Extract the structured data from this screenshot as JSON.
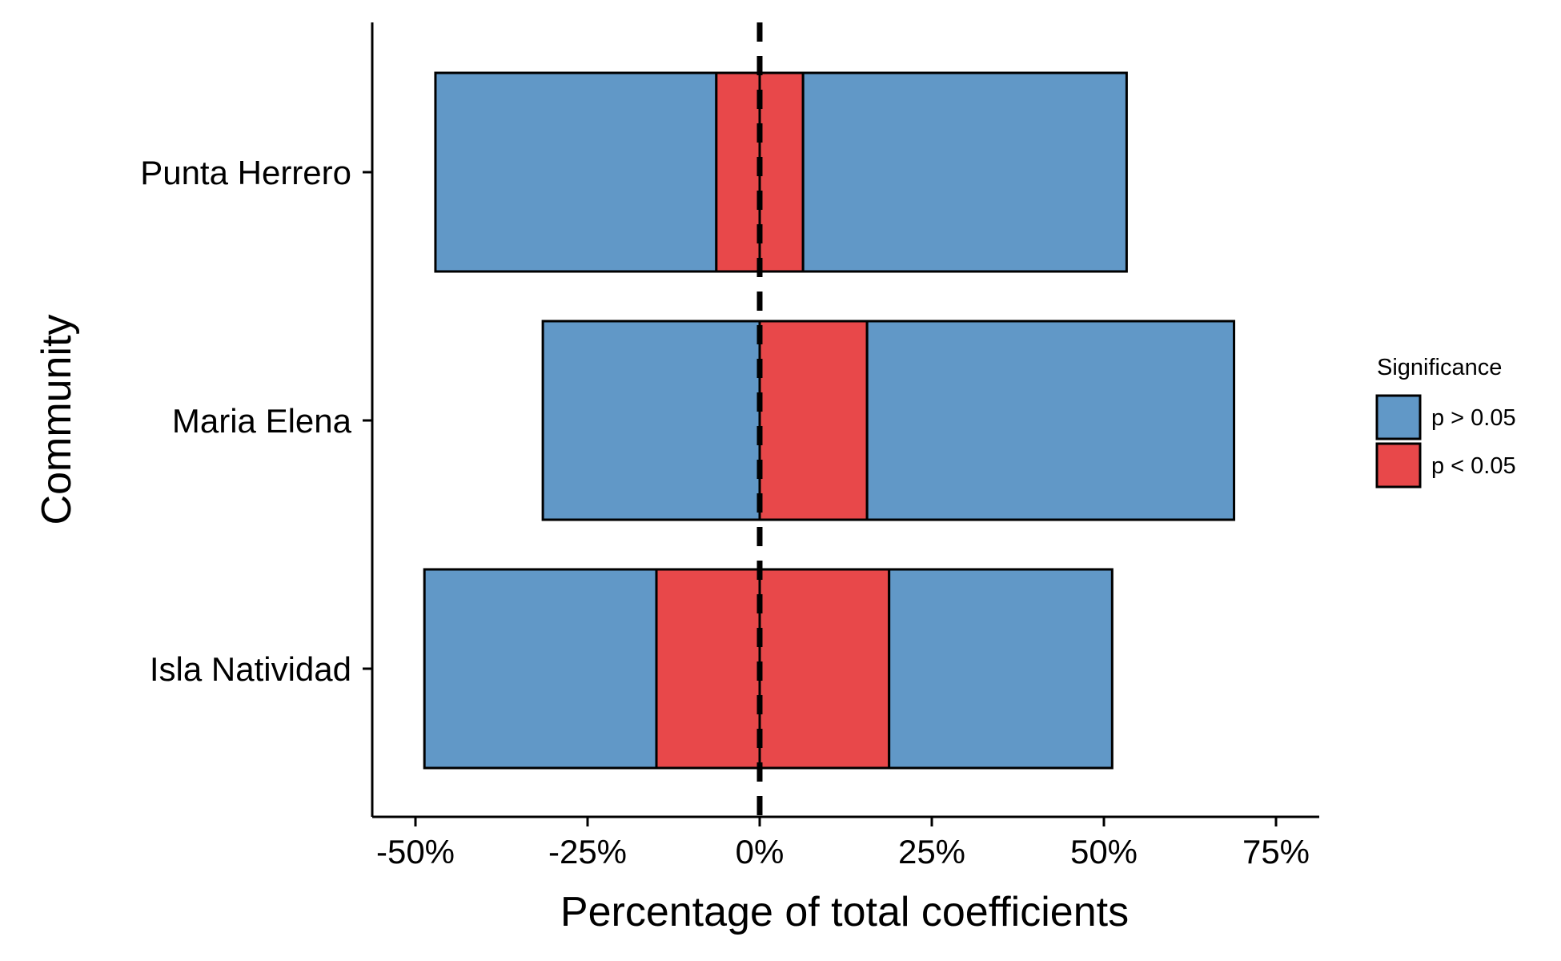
{
  "chart_data": {
    "type": "bar",
    "orientation": "horizontal",
    "stacked": "diverging",
    "xlabel": "Percentage of total coefficients",
    "ylabel": "Community",
    "xlim": [
      -55,
      81
    ],
    "x_ticks": [
      -50,
      -25,
      0,
      25,
      50,
      75
    ],
    "x_tick_labels": [
      "-50%",
      "-25%",
      "0%",
      "25%",
      "50%",
      "75%"
    ],
    "reference_line": {
      "x": 0,
      "style": "dashed"
    },
    "legend": {
      "title": "Significance",
      "placement": "right",
      "entries": [
        {
          "label": "p > 0.05",
          "color": "#6198c7"
        },
        {
          "label": "p < 0.05",
          "color": "#e8484a"
        }
      ]
    },
    "categories": [
      "Punta Herrero",
      "Maria Elena",
      "Isla Natividad"
    ],
    "series": [
      {
        "name": "p > 0.05",
        "color": "#6198c7",
        "negative": [
          40.8,
          31.5,
          33.7
        ],
        "positive": [
          47.0,
          53.3,
          32.4
        ]
      },
      {
        "name": "p < 0.05",
        "color": "#e8484a",
        "negative": [
          6.3,
          0.0,
          15.0
        ],
        "positive": [
          6.3,
          15.6,
          18.8
        ]
      }
    ],
    "grid": false
  }
}
